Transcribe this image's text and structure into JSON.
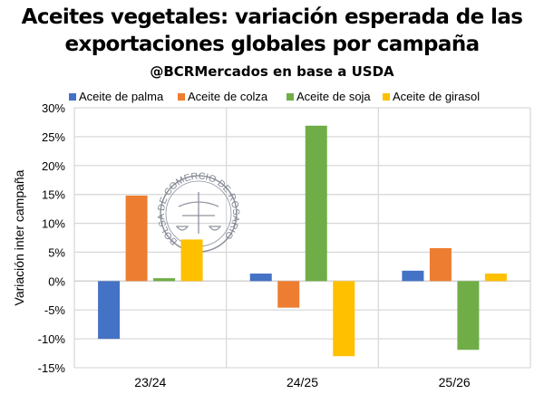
{
  "chart_data": {
    "type": "bar",
    "title": "Aceites vegetales: variación esperada de las exportaciones globales por campaña",
    "title_line1": "Aceites vegetales: variación esperada de las",
    "title_line2": "exportaciones globales por campaña",
    "subtitle": "@BCRMercados en base a USDA",
    "xlabel": "",
    "ylabel": "Variación inter campaña",
    "ylim": [
      -15,
      30
    ],
    "yticks": [
      "-15%",
      "-10%",
      "-5%",
      "0%",
      "5%",
      "10%",
      "15%",
      "20%",
      "25%",
      "30%"
    ],
    "grid": true,
    "legend_position": "top",
    "categories": [
      "23/24",
      "24/25",
      "25/26"
    ],
    "series": [
      {
        "name": "Aceite de palma",
        "color": "#4472C4",
        "values": [
          -10.0,
          1.3,
          1.8
        ]
      },
      {
        "name": "Aceite de colza",
        "color": "#ED7D31",
        "values": [
          14.8,
          -4.6,
          5.7
        ]
      },
      {
        "name": "Aceite de soja",
        "color": "#70AD47",
        "values": [
          0.5,
          26.9,
          -11.9
        ]
      },
      {
        "name": "Aceite de girasol",
        "color": "#FFC000",
        "values": [
          7.2,
          -13.0,
          1.3
        ]
      }
    ],
    "watermark": "BOLSA DE COMERCIO DE ROSARIO"
  }
}
